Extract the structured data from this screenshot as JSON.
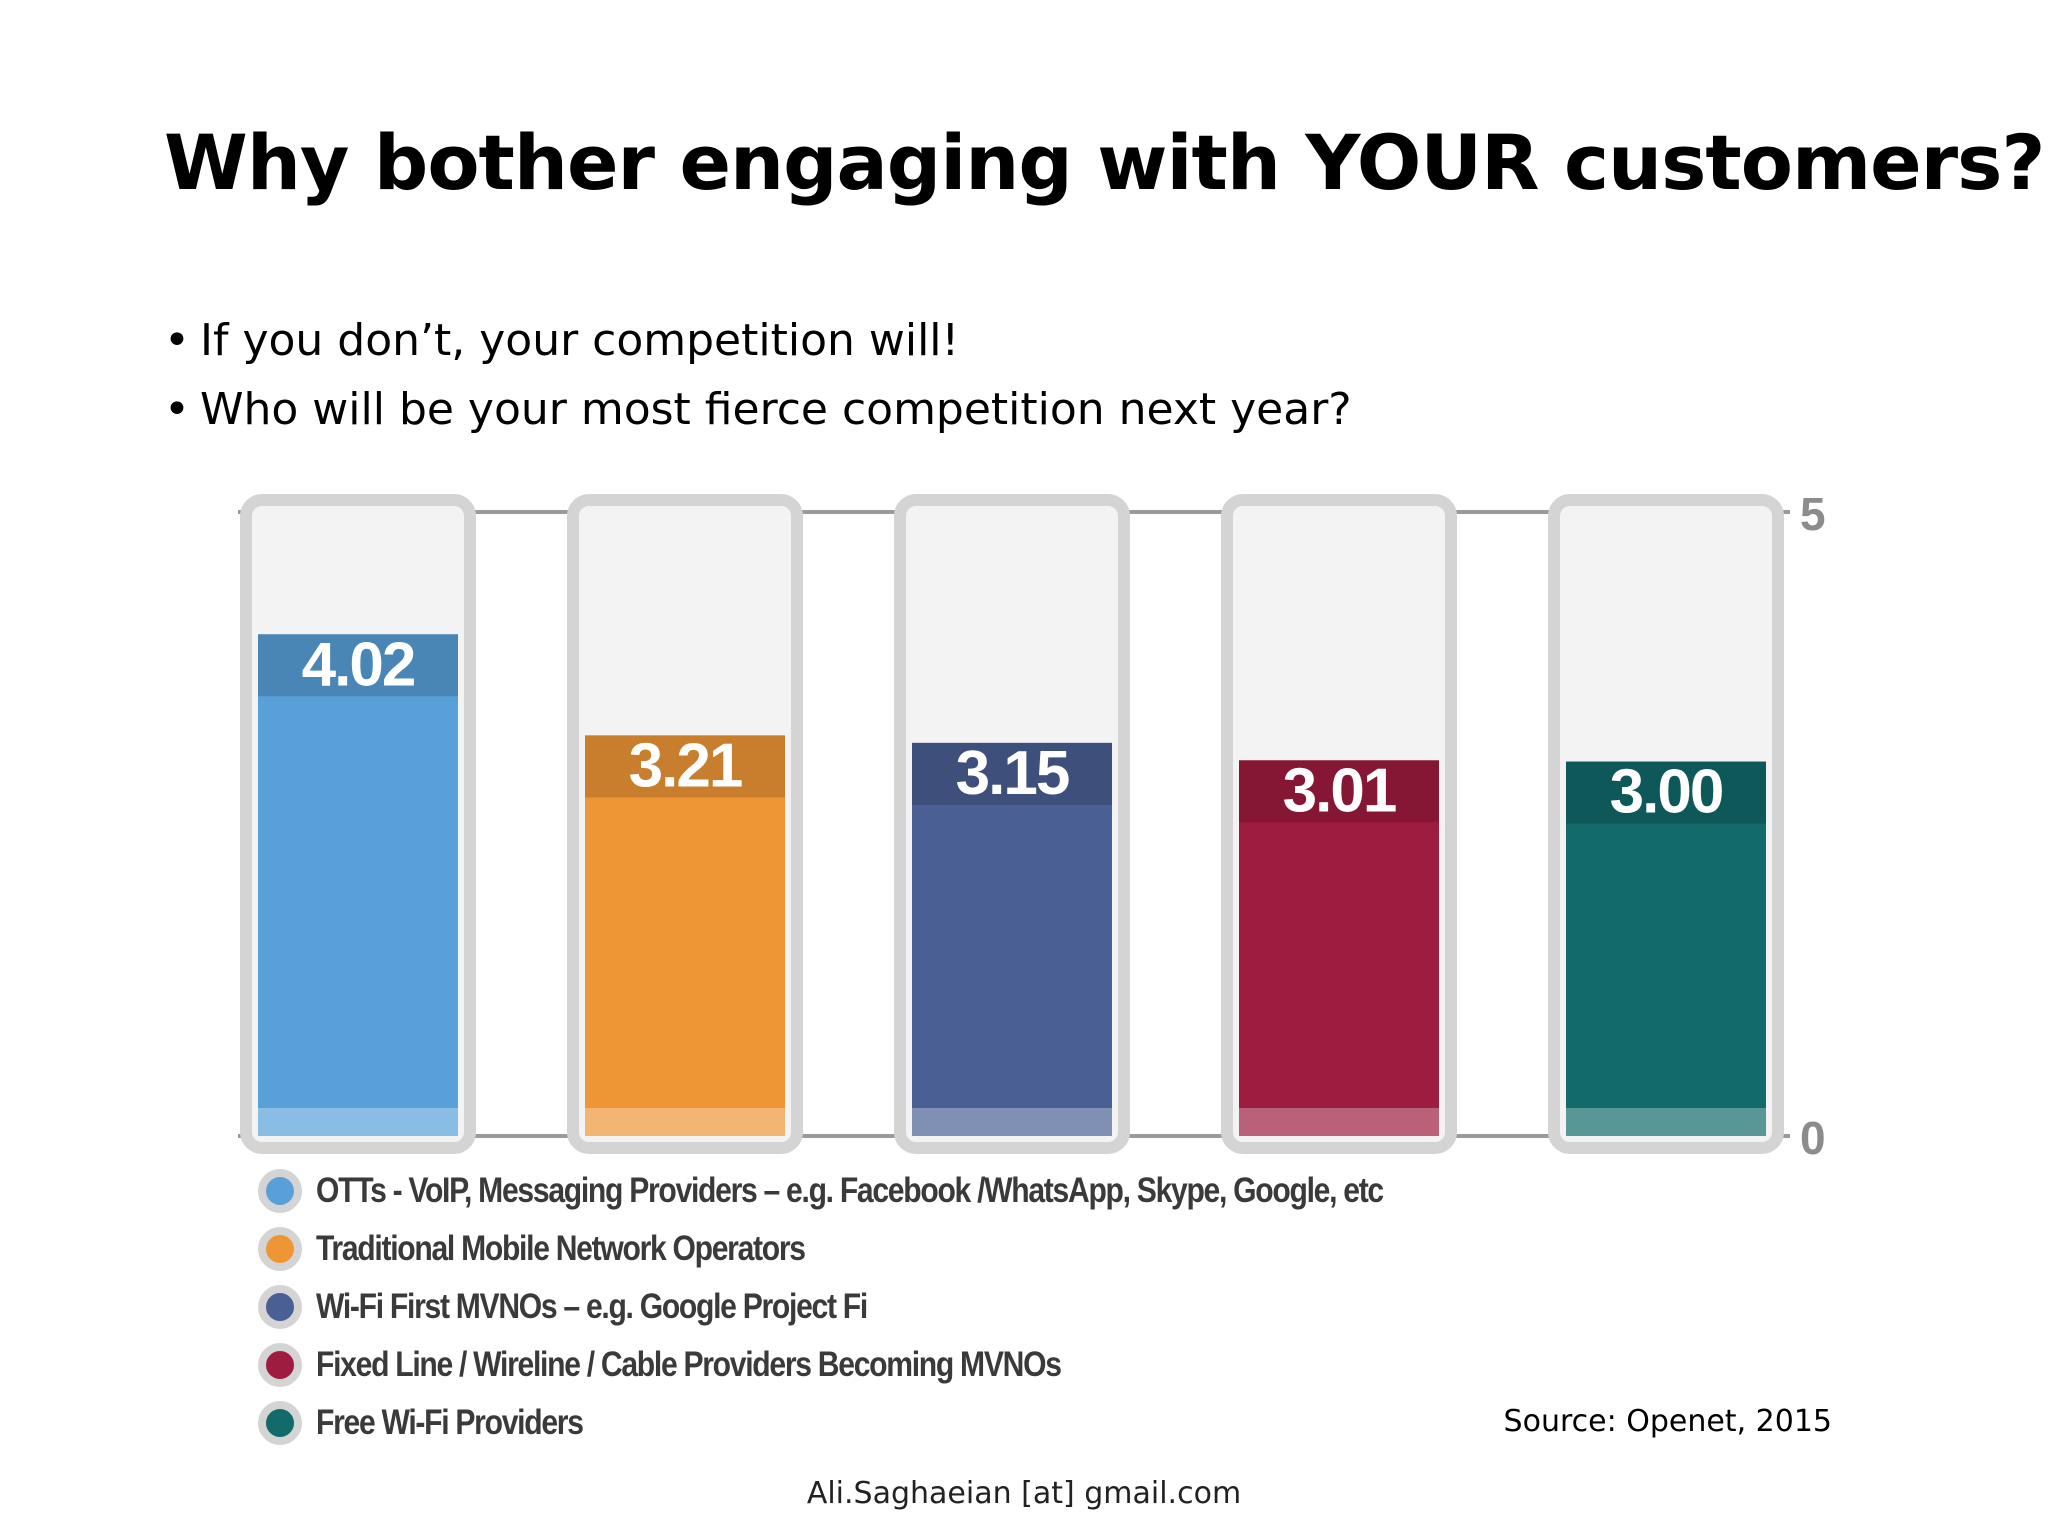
{
  "slide": {
    "title": "Why bother engaging with YOUR customers?",
    "bullets": [
      "If you don’t, your competition will!",
      "Who will be your most fierce competition next year?"
    ],
    "source": "Source: Openet, 2015",
    "footer": "Ali.Saghaeian [at] gmail.com"
  },
  "chart_data": {
    "type": "bar",
    "title": "",
    "xlabel": "",
    "ylabel": "",
    "ylim": [
      0,
      5
    ],
    "yticks": [
      "0",
      "5"
    ],
    "grid": false,
    "legend_position": "bottom-left",
    "series": [
      {
        "name": "OTTs - VoIP, Messaging Providers – e.g. Facebook /WhatsApp, Skype, Google, etc",
        "value": 4.02,
        "label": "4.02",
        "color": "#58a0d8"
      },
      {
        "name": "Traditional Mobile Network Operators",
        "value": 3.21,
        "label": "3.21",
        "color": "#ee9636"
      },
      {
        "name": "Wi-Fi First MVNOs – e.g. Google Project Fi",
        "value": 3.15,
        "label": "3.15",
        "color": "#4a5f94"
      },
      {
        "name": "Fixed Line / Wireline / Cable Providers Becoming MVNOs",
        "value": 3.01,
        "label": "3.01",
        "color": "#9e1c40"
      },
      {
        "name": "Free Wi-Fi Providers",
        "value": 3.0,
        "label": "3.00",
        "color": "#126a6b"
      }
    ]
  }
}
